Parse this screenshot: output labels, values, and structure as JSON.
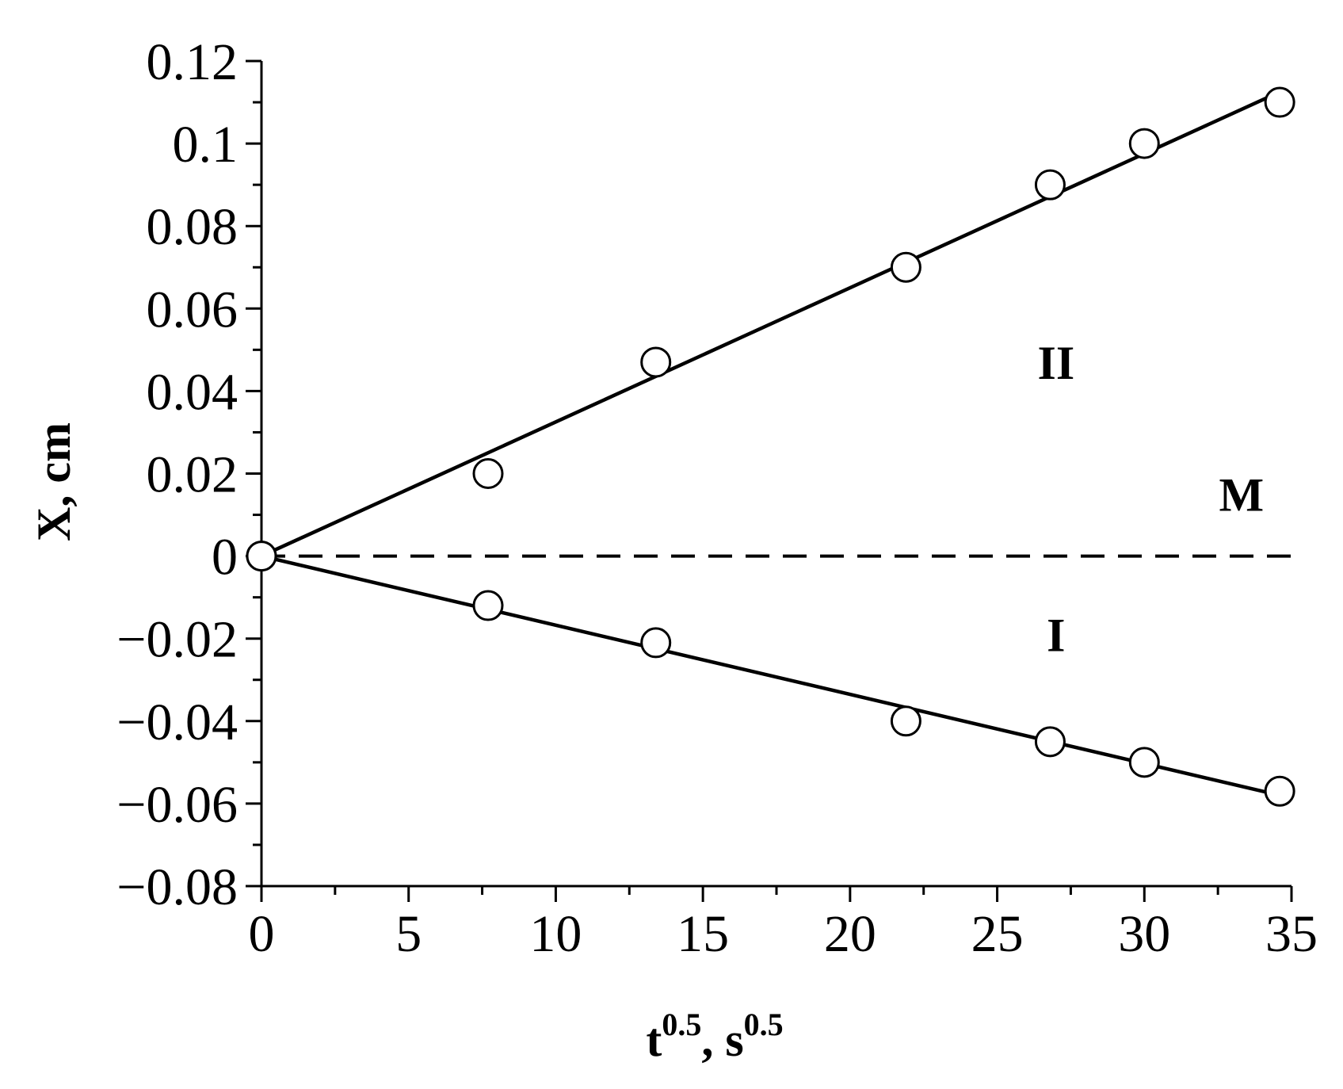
{
  "chart_data": {
    "type": "scatter",
    "title": "",
    "xlabel": {
      "base": "t",
      "sup1": "0.5",
      "mid": ", s",
      "sup2": "0.5"
    },
    "ylabel": "X, cm",
    "xlim": [
      0,
      35
    ],
    "ylim": [
      -0.08,
      0.12
    ],
    "xticks": [
      0,
      5,
      10,
      15,
      20,
      25,
      30,
      35
    ],
    "xtick_labels": [
      "0",
      "5",
      "10",
      "15",
      "20",
      "25",
      "30",
      "35"
    ],
    "yticks": [
      -0.08,
      -0.06,
      -0.04,
      -0.02,
      0,
      0.02,
      0.04,
      0.06,
      0.08,
      0.1,
      0.12
    ],
    "ytick_labels": [
      "−0.08",
      "−0.06",
      "−0.04",
      "−0.02",
      "0",
      "0.02",
      "0.04",
      "0.06",
      "0.08",
      "0.1",
      "0.12"
    ],
    "grid": false,
    "legend": "none",
    "marker": "open-circle",
    "series": [
      {
        "x": [
          0,
          7.7,
          13.4,
          21.9,
          26.8,
          30,
          34.6
        ],
        "y": [
          0,
          0.02,
          0.047,
          0.07,
          0.09,
          0.1,
          0.11
        ],
        "fit": {
          "x": [
            0,
            34.6
          ],
          "y": [
            0,
            0.1125
          ]
        }
      },
      {
        "x": [
          0,
          7.7,
          13.4,
          21.9,
          26.8,
          30,
          34.6
        ],
        "y": [
          0,
          -0.012,
          -0.021,
          -0.04,
          -0.045,
          -0.05,
          -0.057
        ],
        "fit": {
          "x": [
            0,
            34.6
          ],
          "y": [
            0,
            -0.058
          ]
        }
      }
    ],
    "reference_line": {
      "y": 0,
      "x": [
        0,
        35
      ],
      "style": "dashed"
    },
    "annotations": [
      {
        "text": "II",
        "x": 27,
        "y": 0.043
      },
      {
        "text": "M",
        "x": 33.3,
        "y": 0.011
      },
      {
        "text": "I",
        "x": 27,
        "y": -0.023
      }
    ]
  }
}
